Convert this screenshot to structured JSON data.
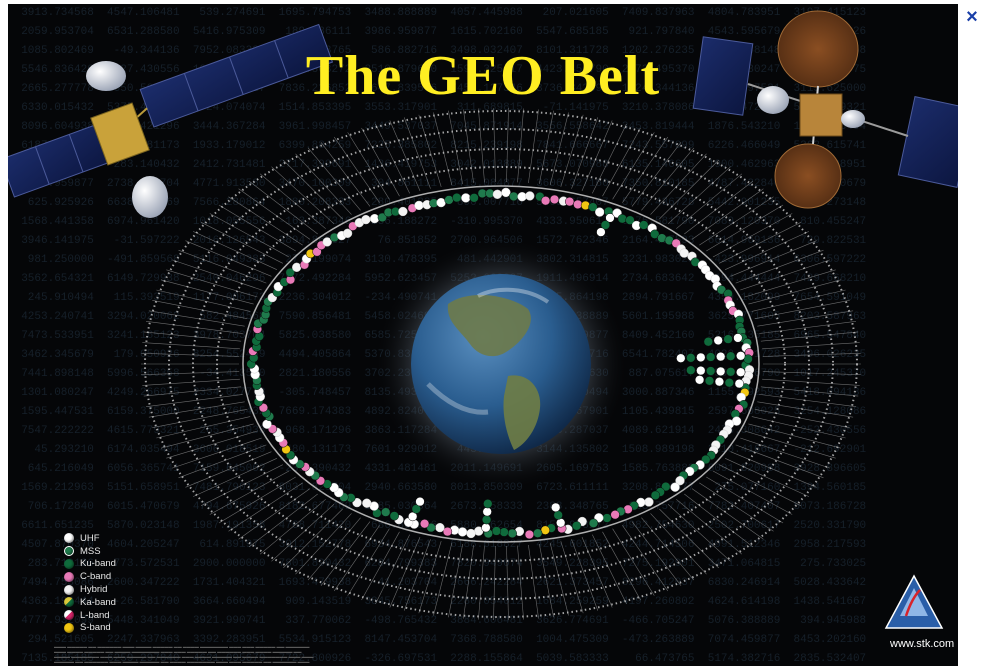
{
  "title": "The GEO Belt",
  "website": "www.stk.com",
  "close_symbol": "×",
  "legend": [
    {
      "label": "UHF",
      "color": "#ffffff"
    },
    {
      "label": "MSS",
      "color": "#1f7a4c"
    },
    {
      "label": "Ku-band",
      "color": "#0f6b3c"
    },
    {
      "label": "C-band",
      "color": "#e97ab8"
    },
    {
      "label": "Hybrid",
      "color": "#f4f4f4"
    },
    {
      "label": "Ka-band",
      "color": "#d9c83a"
    },
    {
      "label": "L-band",
      "color": "#d9246a"
    },
    {
      "label": "S-band",
      "color": "#f1c612"
    }
  ],
  "colors": {
    "background": "#050608",
    "title": "#ffee22",
    "ring_label": "#e6e6e6"
  }
}
